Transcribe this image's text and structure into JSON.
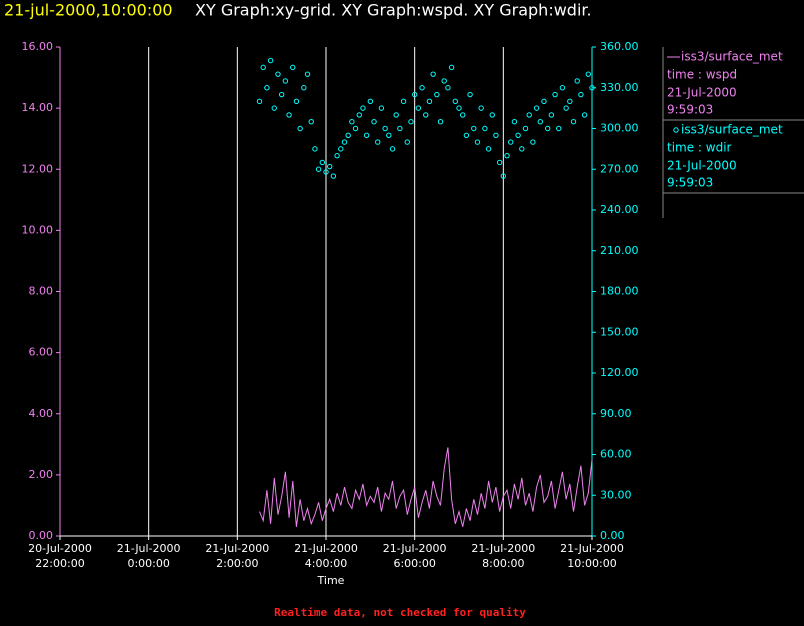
{
  "chart_data": {
    "type": "line",
    "title_time": "21-jul-2000,10:00:00",
    "title": "XY Graph:xy-grid.  XY Graph:wspd.  XY Graph:wdir.",
    "xlabel": "Time",
    "footer": "Realtime data, not checked for quality",
    "grid": true,
    "xlim": [
      "2000-07-20T22:00",
      "2000-07-21T10:00"
    ],
    "xticks": [
      {
        "value": "2000-07-20T22:00",
        "label": "20-Jul-2000\n22:00:00"
      },
      {
        "value": "2000-07-21T00:00",
        "label": "21-Jul-2000\n0:00:00"
      },
      {
        "value": "2000-07-21T02:00",
        "label": "21-Jul-2000\n2:00:00"
      },
      {
        "value": "2000-07-21T04:00",
        "label": "21-Jul-2000\n4:00:00"
      },
      {
        "value": "2000-07-21T06:00",
        "label": "21-Jul-2000\n6:00:00"
      },
      {
        "value": "2000-07-21T08:00",
        "label": "21-Jul-2000\n8:00:00"
      },
      {
        "value": "2000-07-21T10:00",
        "label": "21-Jul-2000\n10:00:00"
      }
    ],
    "ylim": [
      0,
      16
    ],
    "yticks": [
      {
        "value": 0,
        "label": "0.00"
      },
      {
        "value": 2,
        "label": "2.00"
      },
      {
        "value": 4,
        "label": "4.00"
      },
      {
        "value": 6,
        "label": "6.00"
      },
      {
        "value": 8,
        "label": "8.00"
      },
      {
        "value": 10,
        "label": "10.00"
      },
      {
        "value": 12,
        "label": "12.00"
      },
      {
        "value": 14,
        "label": "14.00"
      },
      {
        "value": 16,
        "label": "16.00"
      }
    ],
    "y2lim": [
      0,
      360
    ],
    "y2ticks": [
      {
        "value": 0,
        "label": "0.00"
      },
      {
        "value": 30,
        "label": "30.00"
      },
      {
        "value": 60,
        "label": "60.00"
      },
      {
        "value": 90,
        "label": "90.00"
      },
      {
        "value": 120,
        "label": "120.00"
      },
      {
        "value": 150,
        "label": "150.00"
      },
      {
        "value": 180,
        "label": "180.00"
      },
      {
        "value": 210,
        "label": "210.00"
      },
      {
        "value": 240,
        "label": "240.00"
      },
      {
        "value": 270,
        "label": "270.00"
      },
      {
        "value": 300,
        "label": "300.00"
      },
      {
        "value": 330,
        "label": "330.00"
      },
      {
        "value": 360,
        "label": "360.00"
      }
    ],
    "x": [
      "2000-07-21T02:30",
      "2000-07-21T02:35",
      "2000-07-21T02:40",
      "2000-07-21T02:45",
      "2000-07-21T02:50",
      "2000-07-21T02:55",
      "2000-07-21T03:00",
      "2000-07-21T03:05",
      "2000-07-21T03:10",
      "2000-07-21T03:15",
      "2000-07-21T03:20",
      "2000-07-21T03:25",
      "2000-07-21T03:30",
      "2000-07-21T03:35",
      "2000-07-21T03:40",
      "2000-07-21T03:45",
      "2000-07-21T03:50",
      "2000-07-21T03:55",
      "2000-07-21T04:00",
      "2000-07-21T04:05",
      "2000-07-21T04:10",
      "2000-07-21T04:15",
      "2000-07-21T04:20",
      "2000-07-21T04:25",
      "2000-07-21T04:30",
      "2000-07-21T04:35",
      "2000-07-21T04:40",
      "2000-07-21T04:45",
      "2000-07-21T04:50",
      "2000-07-21T04:55",
      "2000-07-21T05:00",
      "2000-07-21T05:05",
      "2000-07-21T05:10",
      "2000-07-21T05:15",
      "2000-07-21T05:20",
      "2000-07-21T05:25",
      "2000-07-21T05:30",
      "2000-07-21T05:35",
      "2000-07-21T05:40",
      "2000-07-21T05:45",
      "2000-07-21T05:50",
      "2000-07-21T05:55",
      "2000-07-21T06:00",
      "2000-07-21T06:05",
      "2000-07-21T06:10",
      "2000-07-21T06:15",
      "2000-07-21T06:20",
      "2000-07-21T06:25",
      "2000-07-21T06:30",
      "2000-07-21T06:35",
      "2000-07-21T06:40",
      "2000-07-21T06:45",
      "2000-07-21T06:50",
      "2000-07-21T06:55",
      "2000-07-21T07:00",
      "2000-07-21T07:05",
      "2000-07-21T07:10",
      "2000-07-21T07:15",
      "2000-07-21T07:20",
      "2000-07-21T07:25",
      "2000-07-21T07:30",
      "2000-07-21T07:35",
      "2000-07-21T07:40",
      "2000-07-21T07:45",
      "2000-07-21T07:50",
      "2000-07-21T07:55",
      "2000-07-21T08:00",
      "2000-07-21T08:05",
      "2000-07-21T08:10",
      "2000-07-21T08:15",
      "2000-07-21T08:20",
      "2000-07-21T08:25",
      "2000-07-21T08:30",
      "2000-07-21T08:35",
      "2000-07-21T08:40",
      "2000-07-21T08:45",
      "2000-07-21T08:50",
      "2000-07-21T08:55",
      "2000-07-21T09:00",
      "2000-07-21T09:05",
      "2000-07-21T09:10",
      "2000-07-21T09:15",
      "2000-07-21T09:20",
      "2000-07-21T09:25",
      "2000-07-21T09:30",
      "2000-07-21T09:35",
      "2000-07-21T09:40",
      "2000-07-21T09:45",
      "2000-07-21T09:50",
      "2000-07-21T09:55",
      "2000-07-21T10:00"
    ],
    "series": [
      {
        "name": "iss3/surface_met",
        "label": "time : wspd",
        "date": "21-Jul-2000",
        "time": "9:59:03",
        "color": "#ee82ee",
        "mark": "line",
        "values": [
          0.8,
          0.5,
          1.5,
          0.4,
          1.9,
          0.7,
          1.3,
          2.1,
          0.6,
          1.8,
          0.3,
          1.2,
          0.5,
          0.9,
          0.4,
          0.7,
          1.1,
          0.5,
          0.9,
          1.2,
          0.8,
          1.4,
          1.0,
          1.6,
          1.1,
          0.9,
          1.5,
          1.2,
          1.7,
          1.0,
          1.3,
          1.1,
          1.6,
          0.8,
          1.4,
          1.2,
          1.8,
          0.9,
          1.3,
          1.5,
          0.7,
          1.2,
          1.6,
          0.6,
          1.1,
          1.5,
          0.9,
          1.8,
          1.3,
          1.0,
          2.2,
          2.9,
          1.2,
          0.4,
          0.8,
          0.3,
          0.9,
          0.5,
          1.2,
          0.7,
          1.4,
          0.9,
          1.8,
          1.1,
          1.6,
          0.8,
          1.3,
          1.5,
          0.9,
          1.7,
          1.2,
          1.9,
          1.0,
          1.4,
          0.8,
          1.6,
          2.0,
          1.1,
          1.3,
          1.8,
          0.9,
          1.5,
          2.1,
          1.2,
          1.7,
          0.8,
          1.6,
          2.3,
          1.0,
          1.4,
          2.5
        ]
      },
      {
        "name": "iss3/surface_met",
        "label": "time : wdir",
        "date": "21-Jul-2000",
        "time": "9:59:03",
        "color": "#00ffff",
        "mark": "scatter",
        "axis": "y2",
        "values": [
          320,
          345,
          330,
          350,
          315,
          340,
          325,
          335,
          310,
          345,
          320,
          300,
          330,
          340,
          305,
          285,
          270,
          275,
          268,
          272,
          265,
          280,
          285,
          290,
          295,
          305,
          300,
          310,
          315,
          295,
          320,
          305,
          290,
          315,
          300,
          295,
          285,
          310,
          300,
          320,
          290,
          305,
          325,
          315,
          330,
          310,
          320,
          340,
          325,
          305,
          335,
          330,
          345,
          320,
          315,
          310,
          295,
          325,
          300,
          290,
          315,
          300,
          285,
          310,
          295,
          275,
          265,
          280,
          290,
          305,
          295,
          285,
          300,
          310,
          290,
          315,
          305,
          320,
          300,
          310,
          325,
          300,
          330,
          315,
          320,
          305,
          335,
          325,
          310,
          340,
          330
        ]
      }
    ]
  }
}
